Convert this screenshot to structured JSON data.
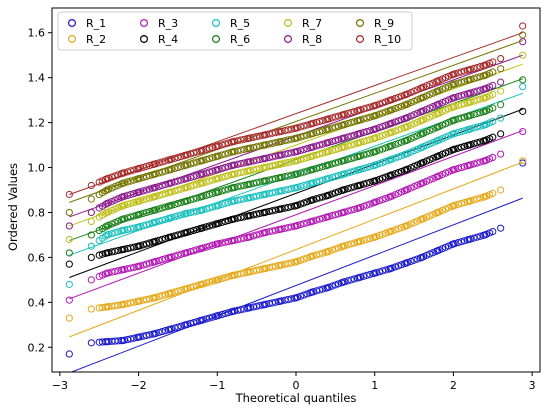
{
  "chart_data": {
    "type": "scatter",
    "title": "",
    "xlabel": "Theoretical quantiles",
    "ylabel": "Ordered Values",
    "xlim": [
      -3.1,
      3.1
    ],
    "ylim": [
      0.09,
      1.71
    ],
    "xticks": [
      -3,
      -2,
      -1,
      0,
      1,
      2,
      3
    ],
    "yticks": [
      0.2,
      0.4,
      0.6,
      0.8,
      1.0,
      1.2,
      1.4,
      1.6
    ],
    "xtick_labels": [
      "−3",
      "−2",
      "−1",
      "0",
      "1",
      "2",
      "3"
    ],
    "ytick_labels": [
      "0.2",
      "0.4",
      "0.6",
      "0.8",
      "1.0",
      "1.2",
      "1.4",
      "1.6"
    ],
    "grid": false,
    "legend": {
      "placement": "top-left",
      "columns": 5,
      "marker": "open-circle"
    },
    "x_quantiles": [
      -2.88,
      -2.6,
      -2.4,
      -2.2,
      -2.0,
      -1.8,
      -1.6,
      -1.4,
      -1.2,
      -1.0,
      -0.8,
      -0.6,
      -0.4,
      -0.2,
      0.0,
      0.2,
      0.4,
      0.6,
      0.8,
      1.0,
      1.2,
      1.4,
      1.6,
      1.8,
      2.0,
      2.2,
      2.4,
      2.6,
      2.88
    ],
    "series": [
      {
        "name": "R_1",
        "color": "#1a1acc",
        "fit": {
          "slope": 0.135,
          "intercept": 0.475
        },
        "values": [
          0.17,
          0.22,
          0.225,
          0.23,
          0.245,
          0.26,
          0.28,
          0.3,
          0.32,
          0.34,
          0.36,
          0.375,
          0.39,
          0.405,
          0.42,
          0.445,
          0.465,
          0.49,
          0.51,
          0.53,
          0.55,
          0.575,
          0.6,
          0.63,
          0.66,
          0.68,
          0.7,
          0.73,
          1.02
        ]
      },
      {
        "name": "R_2",
        "color": "#e6a817",
        "fit": {
          "slope": 0.135,
          "intercept": 0.635
        },
        "values": [
          0.33,
          0.37,
          0.38,
          0.39,
          0.405,
          0.42,
          0.44,
          0.46,
          0.48,
          0.5,
          0.52,
          0.535,
          0.55,
          0.565,
          0.58,
          0.605,
          0.625,
          0.65,
          0.67,
          0.69,
          0.715,
          0.74,
          0.77,
          0.8,
          0.83,
          0.85,
          0.87,
          0.9,
          1.03
        ]
      },
      {
        "name": "R_3",
        "color": "#b319b3",
        "fit": {
          "slope": 0.13,
          "intercept": 0.79
        },
        "values": [
          0.41,
          0.5,
          0.53,
          0.545,
          0.56,
          0.58,
          0.6,
          0.62,
          0.64,
          0.66,
          0.675,
          0.69,
          0.71,
          0.725,
          0.74,
          0.76,
          0.78,
          0.8,
          0.82,
          0.845,
          0.87,
          0.9,
          0.93,
          0.96,
          0.99,
          1.01,
          1.03,
          1.06,
          1.16
        ]
      },
      {
        "name": "R_4",
        "color": "#000000",
        "fit": {
          "slope": 0.13,
          "intercept": 0.885
        },
        "values": [
          0.57,
          0.6,
          0.62,
          0.635,
          0.65,
          0.67,
          0.69,
          0.71,
          0.73,
          0.75,
          0.77,
          0.785,
          0.8,
          0.815,
          0.83,
          0.855,
          0.875,
          0.9,
          0.92,
          0.94,
          0.965,
          0.99,
          1.02,
          1.05,
          1.08,
          1.1,
          1.12,
          1.15,
          1.25
        ]
      },
      {
        "name": "R_5",
        "color": "#19bfbf",
        "fit": {
          "slope": 0.125,
          "intercept": 0.97
        },
        "values": [
          0.48,
          0.65,
          0.7,
          0.72,
          0.735,
          0.755,
          0.775,
          0.795,
          0.81,
          0.83,
          0.85,
          0.865,
          0.88,
          0.895,
          0.91,
          0.93,
          0.95,
          0.97,
          0.99,
          1.01,
          1.035,
          1.06,
          1.09,
          1.12,
          1.15,
          1.17,
          1.19,
          1.22,
          1.36
        ]
      },
      {
        "name": "R_6",
        "color": "#1a801a",
        "fit": {
          "slope": 0.125,
          "intercept": 1.035
        },
        "values": [
          0.62,
          0.7,
          0.74,
          0.77,
          0.79,
          0.81,
          0.83,
          0.85,
          0.87,
          0.89,
          0.91,
          0.925,
          0.94,
          0.955,
          0.97,
          0.99,
          1.01,
          1.03,
          1.05,
          1.07,
          1.095,
          1.12,
          1.15,
          1.18,
          1.21,
          1.23,
          1.25,
          1.28,
          1.39
        ]
      },
      {
        "name": "R_7",
        "color": "#bfbf19",
        "fit": {
          "slope": 0.125,
          "intercept": 1.1
        },
        "values": [
          0.68,
          0.76,
          0.8,
          0.83,
          0.85,
          0.87,
          0.89,
          0.91,
          0.93,
          0.95,
          0.97,
          0.985,
          1.0,
          1.015,
          1.03,
          1.05,
          1.07,
          1.09,
          1.11,
          1.13,
          1.155,
          1.18,
          1.21,
          1.24,
          1.27,
          1.29,
          1.31,
          1.34,
          1.5
        ]
      },
      {
        "name": "R_8",
        "color": "#8c1a8c",
        "fit": {
          "slope": 0.125,
          "intercept": 1.14
        },
        "values": [
          0.74,
          0.8,
          0.84,
          0.87,
          0.89,
          0.91,
          0.93,
          0.95,
          0.97,
          0.99,
          1.01,
          1.025,
          1.04,
          1.055,
          1.07,
          1.09,
          1.11,
          1.13,
          1.15,
          1.17,
          1.195,
          1.22,
          1.25,
          1.28,
          1.31,
          1.33,
          1.35,
          1.38,
          1.56
        ]
      },
      {
        "name": "R_9",
        "color": "#737300",
        "fit": {
          "slope": 0.125,
          "intercept": 1.205
        },
        "values": [
          0.8,
          0.86,
          0.9,
          0.93,
          0.95,
          0.97,
          0.99,
          1.01,
          1.03,
          1.05,
          1.07,
          1.085,
          1.1,
          1.115,
          1.13,
          1.15,
          1.17,
          1.19,
          1.21,
          1.23,
          1.255,
          1.28,
          1.31,
          1.34,
          1.37,
          1.39,
          1.41,
          1.44,
          1.59
        ]
      },
      {
        "name": "R_10",
        "color": "#a62a2a",
        "fit": {
          "slope": 0.125,
          "intercept": 1.24
        },
        "values": [
          0.88,
          0.92,
          0.95,
          0.975,
          0.995,
          1.015,
          1.035,
          1.055,
          1.075,
          1.095,
          1.115,
          1.13,
          1.145,
          1.16,
          1.175,
          1.195,
          1.215,
          1.235,
          1.255,
          1.275,
          1.3,
          1.325,
          1.355,
          1.385,
          1.415,
          1.435,
          1.455,
          1.485,
          1.63
        ]
      }
    ]
  }
}
